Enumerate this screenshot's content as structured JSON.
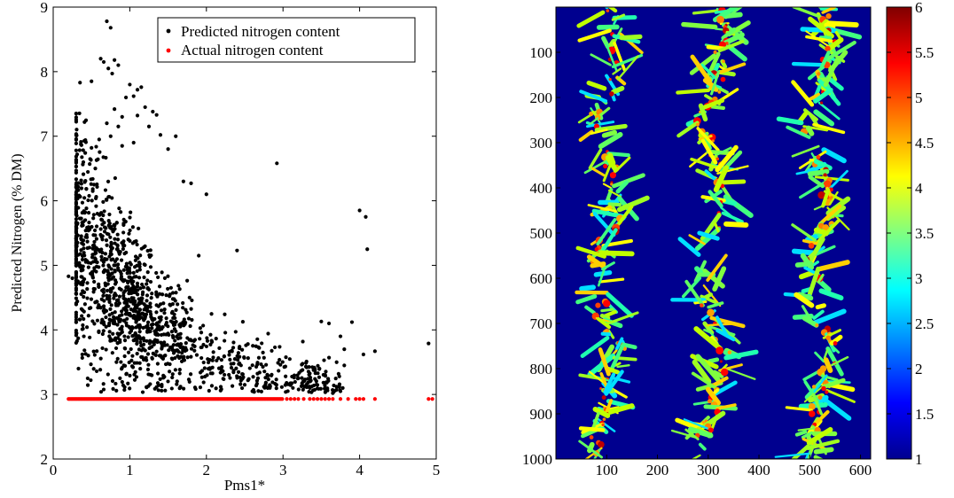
{
  "colors": {
    "predicted": "#000000",
    "actual": "#ff0000",
    "heatmap_background": "#00008f",
    "colormap": [
      "#00008f",
      "#0000ff",
      "#0080ff",
      "#00ffff",
      "#80ff80",
      "#ffff00",
      "#ff8000",
      "#ff0000",
      "#800000"
    ]
  },
  "chart_data": [
    {
      "type": "scatter",
      "title": "",
      "xlabel": "Pms1*",
      "ylabel": "Predicted Nitrogen (% DM)",
      "xlim": [
        0,
        5
      ],
      "ylim": [
        2,
        9
      ],
      "xticks": [
        0,
        1,
        2,
        3,
        4,
        5
      ],
      "yticks": [
        2,
        3,
        4,
        5,
        6,
        7,
        8,
        9
      ],
      "grid": false,
      "legend_placement": "top-right",
      "series": [
        {
          "name": "Predicted nitrogen content",
          "color": "#000000",
          "description": "dense cloud of ~1500 points",
          "points": [
            [
              0.7,
              8.78
            ],
            [
              0.75,
              8.68
            ],
            [
              0.62,
              8.2
            ],
            [
              0.66,
              8.15
            ],
            [
              0.72,
              8.05
            ],
            [
              0.77,
              7.97
            ],
            [
              0.8,
              8.18
            ],
            [
              0.85,
              8.1
            ],
            [
              0.35,
              7.83
            ],
            [
              0.5,
              7.85
            ],
            [
              1.0,
              7.8
            ],
            [
              1.1,
              7.72
            ],
            [
              1.15,
              7.76
            ],
            [
              1.05,
              7.62
            ],
            [
              0.95,
              7.6
            ],
            [
              1.2,
              7.45
            ],
            [
              0.8,
              7.42
            ],
            [
              0.9,
              7.3
            ],
            [
              1.1,
              7.32
            ],
            [
              1.3,
              7.38
            ],
            [
              1.35,
              7.33
            ],
            [
              0.7,
              7.2
            ],
            [
              0.85,
              7.15
            ],
            [
              1.25,
              7.15
            ],
            [
              1.4,
              7.02
            ],
            [
              1.6,
              7.0
            ],
            [
              0.6,
              6.95
            ],
            [
              0.75,
              7.0
            ],
            [
              0.9,
              6.85
            ],
            [
              1.05,
              6.9
            ],
            [
              0.5,
              6.82
            ],
            [
              1.5,
              6.8
            ],
            [
              0.55,
              6.5
            ],
            [
              1.7,
              6.3
            ],
            [
              1.8,
              6.27
            ],
            [
              2.0,
              6.1
            ],
            [
              2.92,
              6.58
            ],
            [
              4.0,
              5.85
            ],
            [
              4.08,
              5.75
            ],
            [
              4.1,
              5.25
            ],
            [
              2.4,
              5.23
            ],
            [
              1.9,
              5.15
            ],
            [
              0.2,
              4.83
            ],
            [
              0.25,
              4.8
            ],
            [
              4.9,
              3.79
            ],
            [
              4.2,
              3.67
            ],
            [
              4.05,
              3.62
            ],
            [
              3.9,
              4.12
            ],
            [
              3.5,
              4.13
            ],
            [
              3.6,
              4.1
            ],
            [
              3.75,
              3.9
            ],
            [
              3.8,
              3.7
            ],
            [
              3.7,
              3.5
            ],
            [
              3.8,
              3.45
            ],
            [
              3.55,
              3.3
            ],
            [
              3.75,
              3.05
            ],
            [
              3.65,
              3.02
            ],
            [
              3.78,
              3.1
            ],
            [
              3.7,
              3.12
            ],
            [
              3.3,
              3.12
            ],
            [
              3.1,
              3.15
            ],
            [
              3.2,
              3.25
            ],
            [
              2.8,
              3.1
            ],
            [
              2.6,
              3.05
            ],
            [
              2.5,
              3.15
            ],
            [
              0.3,
              4.12
            ],
            [
              0.33,
              3.4
            ],
            [
              0.45,
              3.25
            ],
            [
              0.38,
              3.62
            ],
            [
              0.4,
              3.9
            ]
          ]
        },
        {
          "name": "Actual nitrogen content",
          "color": "#ff0000",
          "description": "constant actual value across Pms1* range",
          "y_constant": 2.93,
          "x_range": [
            0.2,
            4.95
          ]
        }
      ]
    },
    {
      "type": "heatmap",
      "title": "",
      "xlabel": "",
      "ylabel": "",
      "xlim": [
        0,
        620
      ],
      "ylim": [
        1000,
        0
      ],
      "xticks": [
        100,
        200,
        300,
        400,
        500,
        600
      ],
      "yticks": [
        100,
        200,
        300,
        400,
        500,
        600,
        700,
        800,
        900,
        1000
      ],
      "colorbar": {
        "range": [
          1,
          6
        ],
        "ticks": [
          1,
          1.5,
          2,
          2.5,
          3,
          3.5,
          4,
          4.5,
          5,
          5.5,
          6
        ],
        "colormap": "jet"
      },
      "background_value": 1,
      "plant_columns_x": [
        100,
        310,
        520
      ],
      "plant_rows_y": [
        150,
        480,
        820
      ]
    }
  ]
}
